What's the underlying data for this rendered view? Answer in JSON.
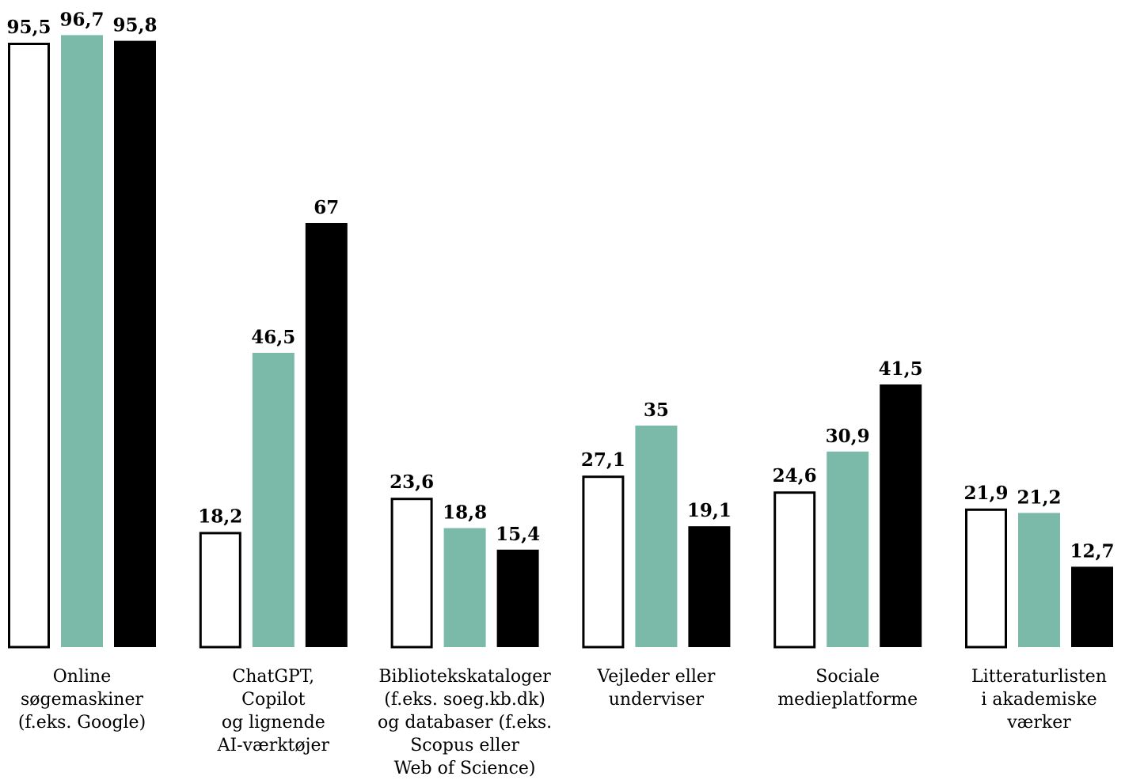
{
  "chart_data": {
    "type": "bar",
    "title": "",
    "xlabel": "",
    "ylabel": "",
    "ylim": [
      0,
      100
    ],
    "grid": false,
    "legend": "none",
    "categories": [
      [
        "Online",
        "søgemaskiner",
        "(f.eks. Google)"
      ],
      [
        "ChatGPT,",
        "Copilot",
        "og lignende",
        "AI-værktøjer"
      ],
      [
        "Bibliotekskataloger",
        "(f.eks. soeg.kb.dk)",
        "og databaser (f.eks.",
        "Scopus eller",
        "Web of Science)"
      ],
      [
        "Vejleder eller",
        "underviser"
      ],
      [
        "Sociale",
        "medieplatforme"
      ],
      [
        "Litteraturlisten",
        "i akademiske",
        "værker"
      ]
    ],
    "value_labels": [
      [
        "95,5",
        "96,7",
        "95,8"
      ],
      [
        "18,2",
        "46,5",
        "67"
      ],
      [
        "23,6",
        "18,8",
        "15,4"
      ],
      [
        "27,1",
        "35",
        "19,1"
      ],
      [
        "24,6",
        "30,9",
        "41,5"
      ],
      [
        "21,9",
        "21,2",
        "12,7"
      ]
    ],
    "series": [
      {
        "style": "outline",
        "fill": "#ffffff",
        "stroke": "#000000",
        "values": [
          95.5,
          18.2,
          23.6,
          27.1,
          24.6,
          21.9
        ]
      },
      {
        "style": "solid",
        "fill": "#7bb9a8",
        "stroke": "none",
        "values": [
          96.7,
          46.5,
          18.8,
          35,
          30.9,
          21.2
        ]
      },
      {
        "style": "solid",
        "fill": "#000000",
        "stroke": "none",
        "values": [
          95.8,
          67,
          15.4,
          19.1,
          41.5,
          12.7
        ]
      }
    ]
  }
}
